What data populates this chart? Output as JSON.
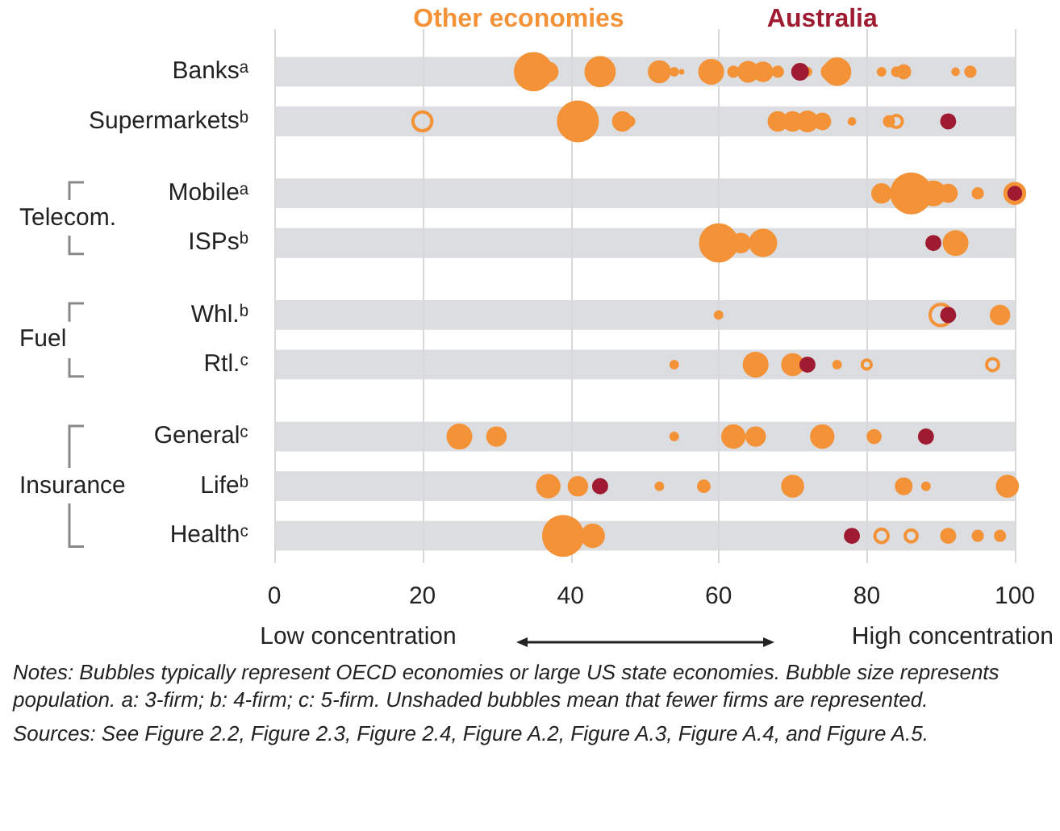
{
  "chart_data": {
    "type": "bubble",
    "orientation": "horizontal",
    "legend": "top",
    "categories": [
      "Banksᵃ",
      "Supermarketsᵇ",
      "Mobileᵃ",
      "ISPsᵇ",
      "Whl.ᵇ",
      "Rtl.ᶜ",
      "Generalᶜ",
      "Lifeᵇ",
      "Healthᶜ"
    ],
    "bands": [
      {
        "axis": "y",
        "from": "Banksᵃ",
        "to": "Banksᵃ",
        "color": "#dcdde0"
      },
      {
        "axis": "y",
        "from": "Supermarketsᵇ",
        "to": "Supermarketsᵇ",
        "color": "#dcdde0"
      },
      {
        "axis": "y",
        "from": "Mobileᵃ",
        "to": "Mobileᵃ",
        "color": "#dcdde0"
      },
      {
        "axis": "y",
        "from": "ISPsᵇ",
        "to": "ISPsᵇ",
        "color": "#dcdde0"
      },
      {
        "axis": "y",
        "from": "Whl.ᵇ",
        "to": "Whl.ᵇ",
        "color": "#dcdde0"
      },
      {
        "axis": "y",
        "from": "Rtl.ᶜ",
        "to": "Rtl.ᶜ",
        "color": "#dcdde0"
      },
      {
        "axis": "y",
        "from": "Generalᶜ",
        "to": "Generalᶜ",
        "color": "#dcdde0"
      },
      {
        "axis": "y",
        "from": "Lifeᵇ",
        "to": "Lifeᵇ",
        "color": "#dcdde0"
      },
      {
        "axis": "y",
        "from": "Healthᶜ",
        "to": "Healthᶜ",
        "color": "#dcdde0"
      }
    ],
    "xlim": [
      0,
      100
    ],
    "xticks": [
      0,
      20,
      40,
      60,
      80,
      100
    ],
    "grid": "x",
    "series": [
      {
        "name": "Other economies",
        "color": "#f39237",
        "x": [
          "Banksᵃ",
          "Banksᵃ",
          "Banksᵃ",
          "Banksᵃ",
          "Banksᵃ",
          "Banksᵃ",
          "Banksᵃ",
          "Banksᵃ",
          "Banksᵃ",
          "Banksᵃ",
          "Banksᵃ",
          "Banksᵃ",
          "Banksᵃ",
          "Banksᵃ",
          "Banksᵃ",
          "Banksᵃ",
          "Banksᵃ",
          "Banksᵃ",
          "Banksᵃ",
          "Supermarketsᵇ",
          "Supermarketsᵇ",
          "Supermarketsᵇ",
          "Supermarketsᵇ",
          "Supermarketsᵇ",
          "Supermarketsᵇ",
          "Supermarketsᵇ",
          "Supermarketsᵇ",
          "Mobileᵃ",
          "Mobileᵃ",
          "Mobileᵃ",
          "Mobileᵃ",
          "Mobileᵃ",
          "Mobileᵃ",
          "ISPsᵇ",
          "ISPsᵇ",
          "ISPsᵇ",
          "ISPsᵇ",
          "Whl.ᵇ",
          "Whl.ᵇ",
          "Rtl.ᶜ",
          "Rtl.ᶜ",
          "Rtl.ᶜ",
          "Rtl.ᶜ",
          "Generalᶜ",
          "Generalᶜ",
          "Generalᶜ",
          "Generalᶜ",
          "Generalᶜ",
          "Generalᶜ",
          "Generalᶜ",
          "Lifeᵇ",
          "Lifeᵇ",
          "Lifeᵇ",
          "Lifeᵇ",
          "Lifeᵇ",
          "Lifeᵇ",
          "Lifeᵇ",
          "Lifeᵇ",
          "Healthᶜ",
          "Healthᶜ",
          "Healthᶜ",
          "Healthᶜ",
          "Healthᶜ"
        ],
        "values": [
          35,
          37,
          44,
          52,
          54,
          55,
          59,
          62,
          64,
          66,
          68,
          72,
          76,
          75,
          82,
          84,
          85,
          92,
          94,
          41,
          47,
          68,
          70,
          72,
          74,
          78,
          83,
          82,
          86,
          89,
          91,
          95,
          100,
          60,
          63,
          66,
          92,
          60,
          98,
          54,
          65,
          70,
          76,
          25,
          30,
          54,
          62,
          65,
          74,
          81,
          37,
          41,
          52,
          58,
          70,
          85,
          88,
          99,
          39,
          43,
          91,
          95,
          98
        ],
        "sizes": [
          0.87,
          0.22,
          0.54,
          0.28,
          0.04,
          0.01,
          0.36,
          0.07,
          0.25,
          0.22,
          0.07,
          0.04,
          0.44,
          0.16,
          0.04,
          0.05,
          0.11,
          0.03,
          0.07,
          1,
          0.22,
          0.22,
          0.22,
          0.25,
          0.16,
          0.03,
          0.07,
          0.22,
          1,
          0.36,
          0.19,
          0.07,
          0.28,
          0.87,
          0.22,
          0.44,
          0.36,
          0.04,
          0.22,
          0.04,
          0.36,
          0.28,
          0.04,
          0.36,
          0.22,
          0.04,
          0.32,
          0.22,
          0.32,
          0.11,
          0.32,
          0.22,
          0.04,
          0.09,
          0.28,
          0.16,
          0.04,
          0.28,
          1,
          0.32,
          0.13,
          0.07,
          0.07
        ]
      },
      {
        "color": "#f39237",
        "marker": "circle-open",
        "x": [
          "Supermarketsᵇ",
          "Supermarketsᵇ",
          "Supermarketsᵇ",
          "Whl.ᵇ",
          "Rtl.ᶜ",
          "Rtl.ᶜ",
          "Healthᶜ",
          "Healthᶜ"
        ],
        "values": [
          20,
          48,
          84,
          90,
          80,
          97,
          82,
          86
        ],
        "sizes": [
          0.22,
          0.04,
          0.09,
          0.28,
          0.05,
          0.09,
          0.11,
          0.09
        ]
      },
      {
        "name": "Australia",
        "color": "#9e1b32",
        "x": [
          "Banksᵃ",
          "Supermarketsᵇ",
          "Mobileᵃ",
          "ISPsᵇ",
          "Whl.ᵇ",
          "Rtl.ᶜ",
          "Generalᶜ",
          "Lifeᵇ",
          "Healthᶜ"
        ],
        "values": [
          71,
          91,
          100,
          89,
          91,
          72,
          88,
          44,
          78
        ],
        "sizes": [
          0.16,
          0.13,
          0.11,
          0.13,
          0.13,
          0.13,
          0.13,
          0.13,
          0.13
        ]
      }
    ],
    "annotations": [
      "Low concentration",
      "High concentration",
      "Telecom.",
      "Fuel",
      "Insurance",
      "Notes: Bubbles typically represent OECD economies or large US state economies. Bubble size represents population. a: 3-firm; b: 4-firm; c: 5-firm. Unshaded bubbles mean that fewer firms are represented.",
      "Sources: See Figure 2.2, Figure 2.3, Figure 2.4, Figure A.2, Figure A.3, Figure A.4, and Figure A.5."
    ]
  }
}
